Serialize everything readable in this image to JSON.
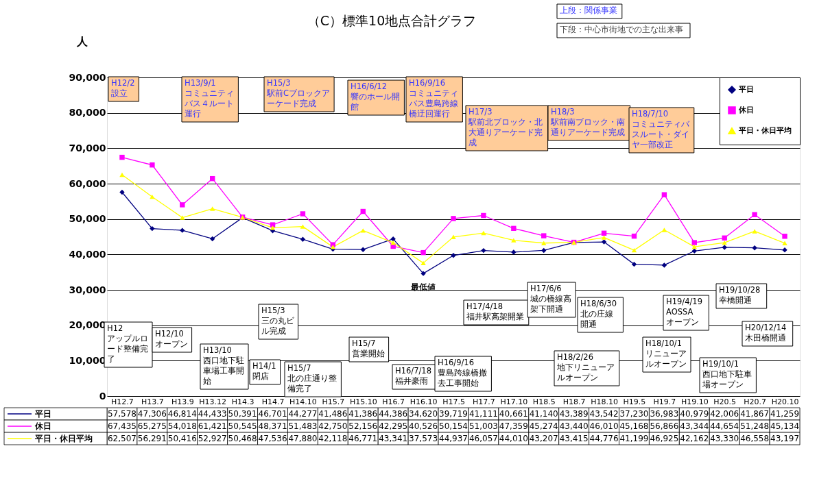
{
  "chart_data": {
    "type": "line",
    "title": "（C）標準10地点合計グラフ",
    "ylabel": "人",
    "categories": [
      "H12.7",
      "H13.7",
      "H13.9",
      "H13.12",
      "H14.3",
      "H14.7",
      "H14.10",
      "H15.7",
      "H15.10",
      "H16.7",
      "H16.10",
      "H17.5",
      "H17.7",
      "H17.10",
      "H18.5",
      "H18.7",
      "H18.10",
      "H19.5",
      "H19.7",
      "H19.10",
      "H20.5",
      "H20.7",
      "H20.10"
    ],
    "series": [
      {
        "name": "平日",
        "color": "#000080",
        "marker": "diamond",
        "values": [
          57578,
          47306,
          46814,
          44433,
          50391,
          46701,
          44277,
          41486,
          41386,
          44386,
          34620,
          39719,
          41111,
          40661,
          41140,
          43389,
          43542,
          37230,
          36983,
          40979,
          42006,
          41867,
          41259
        ],
        "value_labels": [
          "57,578",
          "47,306",
          "46,814",
          "44,433",
          "50,391",
          "46,701",
          "44,277",
          "41,486",
          "41,386",
          "44,386",
          "34,620",
          "39,719",
          "41,111",
          "40,661",
          "41,140",
          "43,389",
          "43,542",
          "37,230",
          "36,983",
          "40,979",
          "42,006",
          "41,867",
          "41,259"
        ]
      },
      {
        "name": "休日",
        "color": "#ff00ff",
        "marker": "square",
        "values": [
          67435,
          65275,
          54018,
          61421,
          50545,
          48371,
          51483,
          42750,
          52156,
          42295,
          40526,
          50154,
          51003,
          47359,
          45274,
          43440,
          46010,
          45168,
          56866,
          43344,
          44654,
          51248,
          45134
        ],
        "value_labels": [
          "67,435",
          "65,275",
          "54,018",
          "61,421",
          "50,545",
          "48,371",
          "51,483",
          "42,750",
          "52,156",
          "42,295",
          "40,526",
          "50,154",
          "51,003",
          "47,359",
          "45,274",
          "43,440",
          "46,010",
          "45,168",
          "56,866",
          "43,344",
          "44,654",
          "51,248",
          "45,134"
        ]
      },
      {
        "name": "平日・休日平均",
        "color": "#ffff00",
        "marker": "triangle",
        "values": [
          62507,
          56291,
          50416,
          52927,
          50468,
          47536,
          47880,
          42118,
          46771,
          43341,
          37573,
          44937,
          46057,
          44010,
          43207,
          43415,
          44776,
          41199,
          46925,
          42162,
          43330,
          46558,
          43197
        ],
        "value_labels": [
          "62,507",
          "56,291",
          "50,416",
          "52,927",
          "50,468",
          "47,536",
          "47,880",
          "42,118",
          "46,771",
          "43,341",
          "37,573",
          "44,937",
          "46,057",
          "44,010",
          "43,207",
          "43,415",
          "44,776",
          "41,199",
          "46,925",
          "42,162",
          "43,330",
          "46,558",
          "43,197"
        ]
      }
    ],
    "ylim": [
      0,
      90000
    ],
    "yticks": [
      0,
      {
        "value": 10000,
        "label": "10,000"
      },
      {
        "value": 20000,
        "label": "20,000"
      },
      {
        "value": 30000,
        "label": "30,000"
      },
      {
        "value": 40000,
        "label": "40,000"
      },
      {
        "value": 50000,
        "label": "50,000"
      },
      {
        "value": 60000,
        "label": "60,000"
      },
      {
        "value": 70000,
        "label": "70,000"
      },
      {
        "value": 80000,
        "label": "80,000"
      },
      {
        "value": 90000,
        "label": "90,000"
      }
    ],
    "grid": true,
    "legend": "top right",
    "annotations": [
      "H12/2\n設立",
      "H13/9/1\nコミュニティバス４ルート運行",
      "H15/3\n駅前Cブロックアーケード完成",
      "H16/6/12\n響のホール開館",
      "H16/9/16\nコミュニティバス豊島跨線橋迂回運行",
      "H17/3\n駅前北ブロック・北大通りアーケード完成",
      "H18/3\n駅前南ブロック・南通りアーケード完成",
      "H18/7/10\nコミュニティバスルート・ダイヤ一部改正",
      "H12\nアップルロード整備完了",
      "H12/10\nオープン",
      "H13/10\n西口地下駐車場工事開始",
      "H14/1\n閉店",
      "H15/3\n三の丸ビル完成",
      "H15/7\n北の庄通り整備完了",
      "H15/7\n営業開始",
      "H16/7/18\n福井豪雨",
      "H16/9/16\n豊島跨線橋撤去工事開始",
      "H17/4/18\n福井駅高架開業",
      "H17/6/6\n城の橋線高架下開通",
      "H18/2/26\n地下リニューアルオープン",
      "H18/6/30\n北の庄線開通",
      "H18/10/1\nリニューアルオープン",
      "H19/4/19\nAOSSAオープン",
      "H19/10/1\n西口地下駐車場オープン",
      "H19/10/28\n幸橋開通",
      "H20/12/14\n木田橋開通",
      "上段：関係事業",
      "下段：中心市街地での主な出来事",
      {
        "text": "最低値",
        "x": "H16.10",
        "y": 34620
      }
    ]
  }
}
